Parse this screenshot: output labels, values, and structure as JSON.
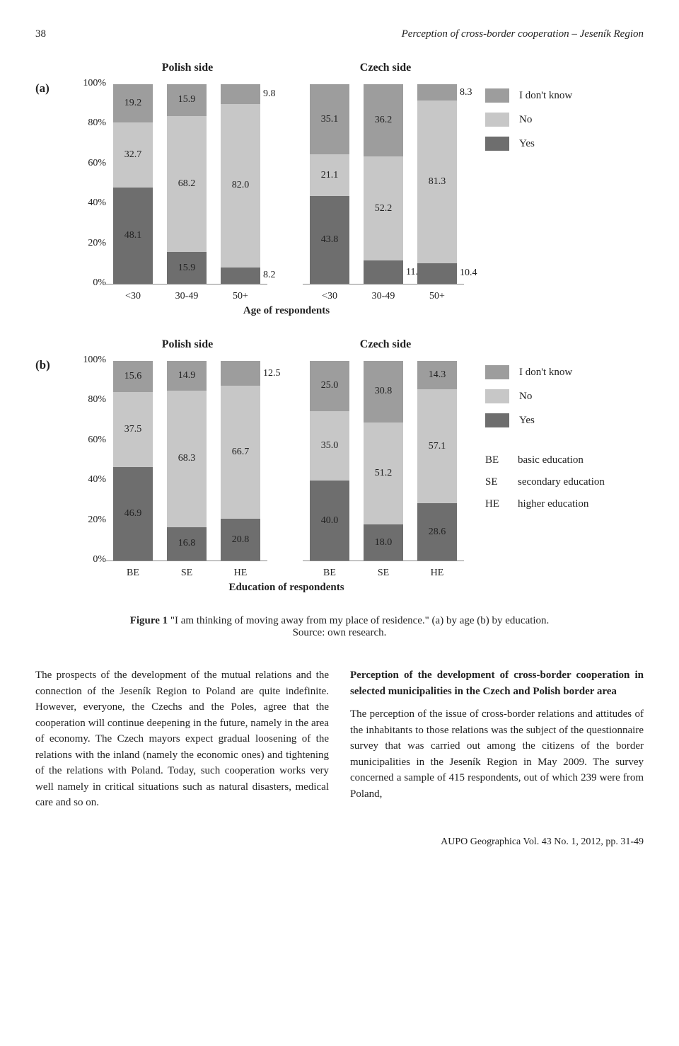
{
  "page_number": "38",
  "running_head": "Perception of cross-border cooperation – Jeseník Region",
  "colors": {
    "yes": "#6e6e6e",
    "no": "#c7c7c7",
    "dont_know": "#9d9d9d",
    "background": "#ffffff"
  },
  "chart_a": {
    "panel_label": "(a)",
    "type": "stacked-bar",
    "y_ticks": [
      "100%",
      "80%",
      "60%",
      "40%",
      "20%",
      "0%"
    ],
    "side_titles": [
      "Polish side",
      "Czech side"
    ],
    "groups": [
      {
        "cats": [
          "<30",
          "30-49",
          "50+"
        ],
        "bars": [
          {
            "yes": 48.1,
            "no": 32.7,
            "dont_know": 19.2
          },
          {
            "yes": 15.9,
            "no": 68.2,
            "dont_know": 15.9
          },
          {
            "yes": 8.2,
            "no": 82.0,
            "dont_know": 9.8
          }
        ]
      },
      {
        "cats": [
          "<30",
          "30-49",
          "50+"
        ],
        "bars": [
          {
            "yes": 43.8,
            "no": 21.1,
            "dont_know": 35.1
          },
          {
            "yes": 11.6,
            "no": 52.2,
            "dont_know": 36.2
          },
          {
            "yes": 10.4,
            "no": 81.3,
            "dont_know": 8.3
          }
        ]
      }
    ],
    "x_title": "Age of respondents",
    "legend": [
      {
        "key": "dont_know",
        "label": "I don't know"
      },
      {
        "key": "no",
        "label": "No"
      },
      {
        "key": "yes",
        "label": "Yes"
      }
    ]
  },
  "chart_b": {
    "panel_label": "(b)",
    "type": "stacked-bar",
    "y_ticks": [
      "100%",
      "80%",
      "60%",
      "40%",
      "20%",
      "0%"
    ],
    "side_titles": [
      "Polish side",
      "Czech side"
    ],
    "groups": [
      {
        "cats": [
          "BE",
          "SE",
          "HE"
        ],
        "bars": [
          {
            "yes": 46.9,
            "no": 37.5,
            "dont_know": 15.6
          },
          {
            "yes": 16.8,
            "no": 68.3,
            "dont_know": 14.9
          },
          {
            "yes": 20.8,
            "no": 66.7,
            "dont_know": 12.5
          }
        ]
      },
      {
        "cats": [
          "BE",
          "SE",
          "HE"
        ],
        "bars": [
          {
            "yes": 40.0,
            "no": 35.0,
            "dont_know": 25.0
          },
          {
            "yes": 18.0,
            "no": 51.2,
            "dont_know": 30.8
          },
          {
            "yes": 28.6,
            "no": 57.1,
            "dont_know": 14.3
          }
        ]
      }
    ],
    "x_title": "Education of respondents",
    "legend": [
      {
        "key": "dont_know",
        "label": "I don't know"
      },
      {
        "key": "no",
        "label": "No"
      },
      {
        "key": "yes",
        "label": "Yes"
      }
    ],
    "legend_defs": [
      {
        "abbr": "BE",
        "text": "basic education"
      },
      {
        "abbr": "SE",
        "text": "secondary education"
      },
      {
        "abbr": "HE",
        "text": "higher education"
      }
    ]
  },
  "figure_caption": {
    "label": "Figure 1",
    "text": "\"I am thinking of moving away from my place of residence.\" (a) by age (b) by education.",
    "source": "Source: own research."
  },
  "body": {
    "left": "The prospects of the development of the mutual relations and the connection of the Jeseník Region to Poland are quite indefinite. However, everyone, the Czechs and the Poles, agree that the cooperation will continue deepening in the future, namely in the area of economy. The Czech mayors expect gradual loosening of the relations with the inland (namely the economic ones) and tightening of the relations with Poland. Today, such cooperation works very well namely in critical situations such as natural disasters, medical care and so on.",
    "right_heading": "Perception of the development of cross-border cooperation in selected municipalities in the Czech and Polish border area",
    "right": "The perception of the issue of cross-border relations and attitudes of the inhabitants to those relations was the subject of the questionnaire survey that was carried out among the citizens of the border municipalities in the Jeseník Region in May 2009. The survey concerned a sample of 415 respondents, out of which 239 were from Poland,"
  },
  "footer": "AUPO Geographica Vol. 43 No. 1, 2012, pp. 31-49"
}
